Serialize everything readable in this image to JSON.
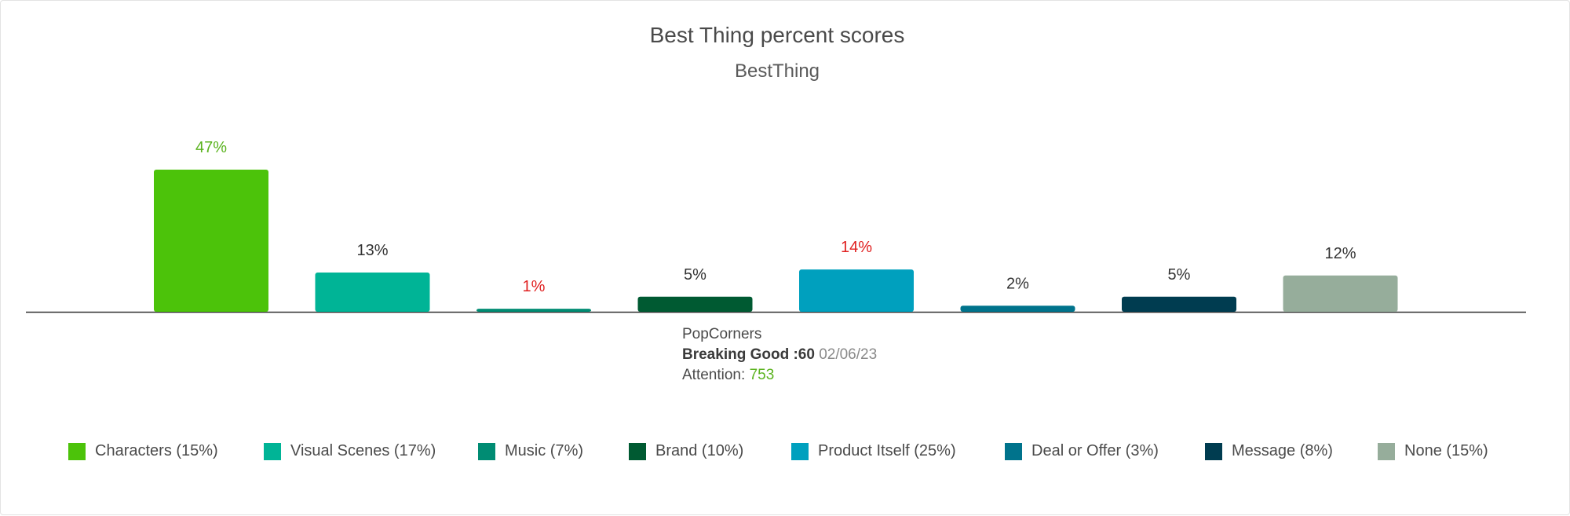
{
  "title": "Best Thing percent scores",
  "subtitle": "BestThing",
  "chart_data": {
    "type": "bar",
    "title": "Best Thing percent scores",
    "subtitle": "BestThing",
    "categories": [
      "Characters",
      "Visual Scenes",
      "Music",
      "Brand",
      "Product Itself",
      "Deal or Offer",
      "Message",
      "None"
    ],
    "values": [
      47,
      13,
      1,
      5,
      14,
      2,
      5,
      12
    ],
    "value_labels": [
      "47%",
      "13%",
      "1%",
      "5%",
      "14%",
      "2%",
      "5%",
      "12%"
    ],
    "label_colors": [
      "#5bb31f",
      "#333333",
      "#e02020",
      "#333333",
      "#e02020",
      "#333333",
      "#333333",
      "#333333"
    ],
    "colors": [
      "#4cc30a",
      "#00b496",
      "#008c73",
      "#005a32",
      "#00a0be",
      "#00738c",
      "#003c50",
      "#96ad9b"
    ],
    "legend": [
      "Characters (15%)",
      "Visual Scenes (17%)",
      "Music (7%)",
      "Brand (10%)",
      "Product Itself (25%)",
      "Deal or Offer (3%)",
      "Message (8%)",
      "None (15%)"
    ],
    "legend_position": "bottom",
    "ylim": [
      0,
      50
    ],
    "grid": false,
    "xlabel": "",
    "ylabel": ""
  },
  "info": {
    "brand": "PopCorners",
    "ad_name": "Breaking Good :60",
    "ad_date": "02/06/23",
    "attention_label": "Attention:",
    "attention_value": "753"
  }
}
